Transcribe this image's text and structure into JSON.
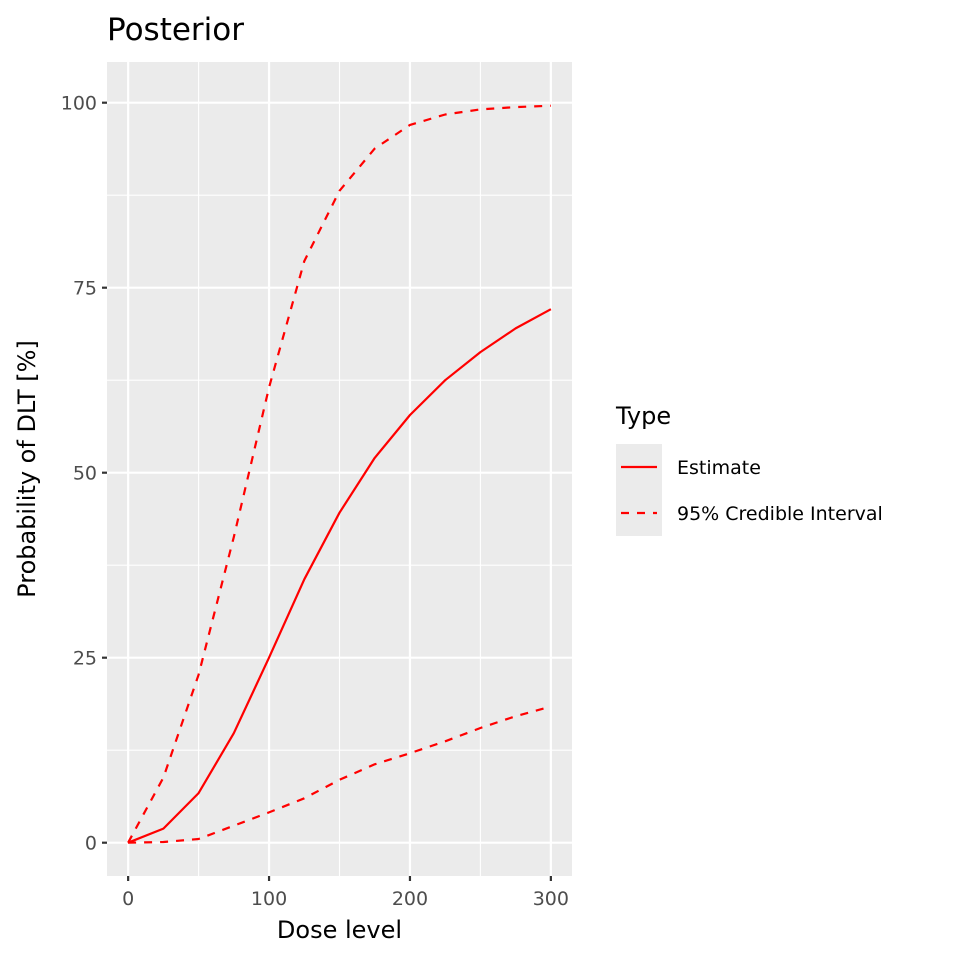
{
  "chart_data": {
    "type": "line",
    "title": "Posterior",
    "xlabel": "Dose level",
    "ylabel": "Probability of DLT [%]",
    "xlim": [
      -15,
      315
    ],
    "ylim": [
      -4.5,
      105.5
    ],
    "x_ticks": [
      0,
      100,
      200,
      300
    ],
    "x_tick_labels": [
      "0",
      "100",
      "200",
      "300"
    ],
    "x_minor_grid": [
      50,
      150,
      250
    ],
    "y_ticks": [
      0,
      25,
      50,
      75,
      100
    ],
    "y_tick_labels": [
      "0",
      "25",
      "50",
      "75",
      "100"
    ],
    "y_minor_grid": [
      12.5,
      37.5,
      62.5,
      87.5
    ],
    "grid": true,
    "legend_position": "right",
    "legend_title": "Type",
    "x": [
      0,
      25,
      50,
      75,
      100,
      125,
      150,
      175,
      200,
      225,
      250,
      275,
      300
    ],
    "series": [
      {
        "name": "Estimate",
        "linetype": "solid",
        "color": "#ff0000",
        "values": [
          0,
          1.9,
          6.7,
          14.8,
          25.0,
          35.6,
          44.6,
          52.0,
          57.8,
          62.5,
          66.3,
          69.5,
          72.1
        ]
      },
      {
        "name": "95% Credible Interval",
        "linetype": "dashed",
        "color": "#ff0000",
        "part": "upper",
        "values": [
          0,
          8.8,
          22.7,
          41.3,
          61.5,
          78.6,
          88.1,
          93.8,
          97.0,
          98.4,
          99.1,
          99.4,
          99.6
        ]
      },
      {
        "name": "95% Credible Interval",
        "linetype": "dashed",
        "color": "#ff0000",
        "part": "lower",
        "values": [
          0,
          0.1,
          0.5,
          2.3,
          4.1,
          6.0,
          8.5,
          10.6,
          12.1,
          13.7,
          15.5,
          17.1,
          18.4
        ]
      }
    ],
    "legend": [
      {
        "label": "Estimate",
        "linetype": "solid"
      },
      {
        "label": "95% Credible Interval",
        "linetype": "dashed"
      }
    ],
    "colors": {
      "panel_bg": "#ebebeb",
      "grid": "#ffffff",
      "line": "#ff0000",
      "tick_text": "#4d4d4d",
      "tick_mark": "#333333"
    }
  }
}
